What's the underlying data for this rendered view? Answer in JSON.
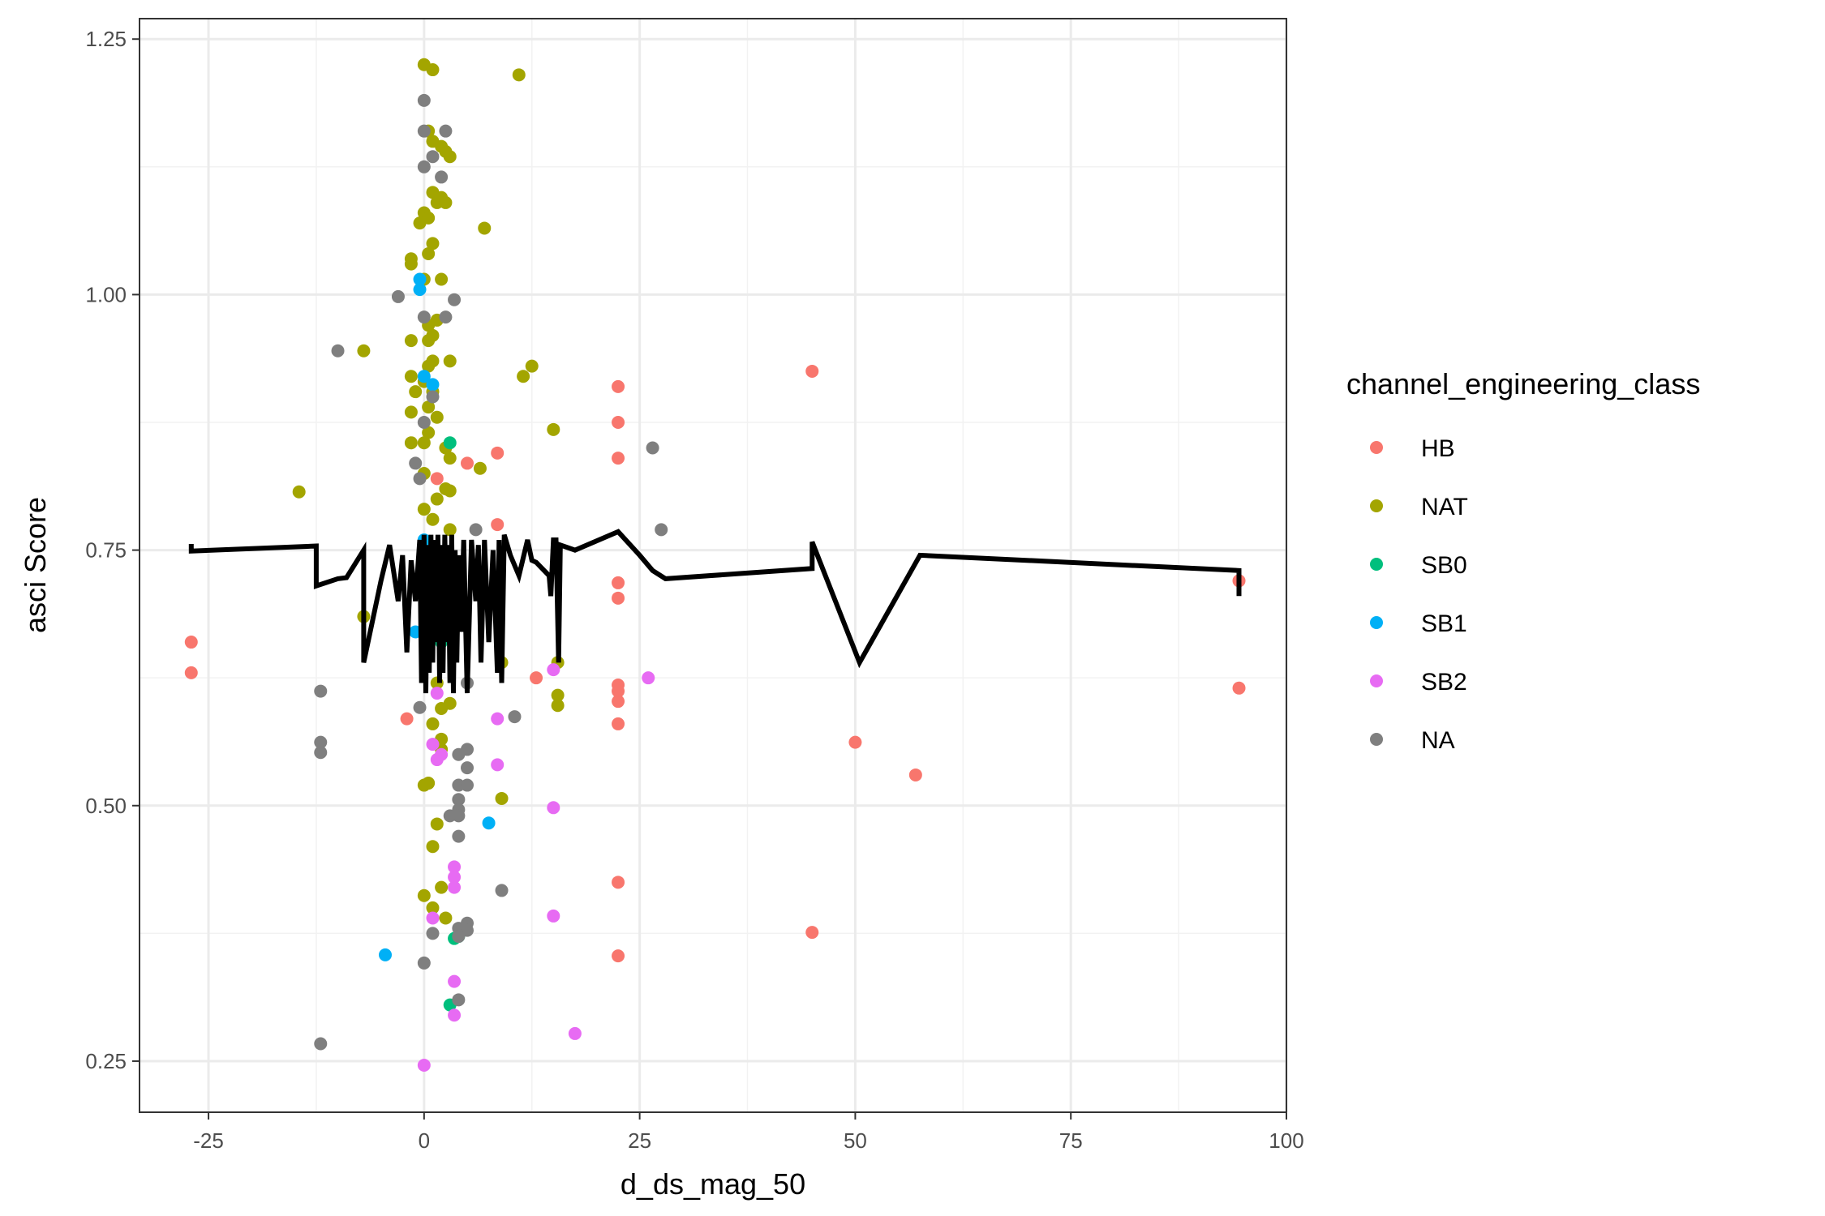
{
  "chart_data": {
    "type": "scatter",
    "title": "",
    "xlabel": "d_ds_mag_50",
    "ylabel": "asci Score",
    "xlim": [
      -33,
      100
    ],
    "ylim": [
      0.2,
      1.27
    ],
    "x_ticks": [
      -25,
      0,
      25,
      50,
      75,
      100
    ],
    "x_tick_labels": [
      "-25",
      "0",
      "25",
      "50",
      "75",
      "100"
    ],
    "y_ticks": [
      0.25,
      0.5,
      0.75,
      1.0,
      1.25
    ],
    "y_tick_labels": [
      "0.25",
      "0.50",
      "0.75",
      "1.00",
      "1.25"
    ],
    "grid": true,
    "legend": {
      "title": "channel_engineering_class",
      "position": "right",
      "entries": [
        {
          "key": "HB",
          "label": "HB",
          "color": "#F8766D"
        },
        {
          "key": "NAT",
          "label": "NAT",
          "color": "#A3A500"
        },
        {
          "key": "SB0",
          "label": "SB0",
          "color": "#00BF7D"
        },
        {
          "key": "SB1",
          "label": "SB1",
          "color": "#00B0F6"
        },
        {
          "key": "SB2",
          "label": "SB2",
          "color": "#E76BF3"
        },
        {
          "key": "NA",
          "label": "NA",
          "color": "#7F7F7F"
        }
      ]
    },
    "series": [
      {
        "key": "HB",
        "points": [
          [
            -27,
            0.66
          ],
          [
            -27,
            0.63
          ],
          [
            -2,
            0.585
          ],
          [
            1.5,
            0.82
          ],
          [
            5,
            0.835
          ],
          [
            8.5,
            0.845
          ],
          [
            8.5,
            0.775
          ],
          [
            13,
            0.625
          ],
          [
            22.5,
            0.91
          ],
          [
            22.5,
            0.875
          ],
          [
            22.5,
            0.84
          ],
          [
            22.5,
            0.718
          ],
          [
            22.5,
            0.703
          ],
          [
            22.5,
            0.618
          ],
          [
            22.5,
            0.612
          ],
          [
            22.5,
            0.602
          ],
          [
            22.5,
            0.58
          ],
          [
            22.5,
            0.425
          ],
          [
            22.5,
            0.353
          ],
          [
            45,
            0.925
          ],
          [
            45,
            0.376
          ],
          [
            50,
            0.562
          ],
          [
            57,
            0.53
          ],
          [
            94.5,
            0.72
          ],
          [
            94.5,
            0.615
          ]
        ]
      },
      {
        "key": "NAT",
        "points": [
          [
            0,
            1.225
          ],
          [
            1,
            1.22
          ],
          [
            11,
            1.215
          ],
          [
            0.5,
            1.16
          ],
          [
            1,
            1.15
          ],
          [
            2,
            1.145
          ],
          [
            2.5,
            1.14
          ],
          [
            3,
            1.135
          ],
          [
            1,
            1.1
          ],
          [
            1.5,
            1.09
          ],
          [
            2,
            1.095
          ],
          [
            2.5,
            1.09
          ],
          [
            0,
            1.08
          ],
          [
            0.5,
            1.075
          ],
          [
            -0.5,
            1.07
          ],
          [
            7,
            1.065
          ],
          [
            1,
            1.05
          ],
          [
            0.5,
            1.04
          ],
          [
            -1.5,
            1.035
          ],
          [
            -1.5,
            1.03
          ],
          [
            0,
            1.015
          ],
          [
            2,
            1.015
          ],
          [
            0.5,
            0.97
          ],
          [
            1.5,
            0.975
          ],
          [
            -1.5,
            0.955
          ],
          [
            1,
            0.96
          ],
          [
            0.5,
            0.955
          ],
          [
            -7,
            0.945
          ],
          [
            1,
            0.935
          ],
          [
            0.5,
            0.93
          ],
          [
            3,
            0.935
          ],
          [
            12.5,
            0.93
          ],
          [
            11.5,
            0.92
          ],
          [
            -1.5,
            0.92
          ],
          [
            0,
            0.915
          ],
          [
            1,
            0.905
          ],
          [
            -1,
            0.905
          ],
          [
            0.5,
            0.89
          ],
          [
            1.5,
            0.88
          ],
          [
            -1.5,
            0.885
          ],
          [
            15,
            0.868
          ],
          [
            0.5,
            0.865
          ],
          [
            0,
            0.855
          ],
          [
            -1.5,
            0.855
          ],
          [
            2.5,
            0.85
          ],
          [
            3,
            0.84
          ],
          [
            6.5,
            0.83
          ],
          [
            0,
            0.825
          ],
          [
            2.5,
            0.81
          ],
          [
            3,
            0.808
          ],
          [
            -14.5,
            0.807
          ],
          [
            1.5,
            0.8
          ],
          [
            0,
            0.79
          ],
          [
            1,
            0.78
          ],
          [
            3,
            0.77
          ],
          [
            -7,
            0.685
          ],
          [
            1.5,
            0.62
          ],
          [
            3,
            0.6
          ],
          [
            15.5,
            0.608
          ],
          [
            15.5,
            0.598
          ],
          [
            2,
            0.595
          ],
          [
            1,
            0.58
          ],
          [
            2,
            0.565
          ],
          [
            2,
            0.555
          ],
          [
            0,
            0.52
          ],
          [
            0.5,
            0.522
          ],
          [
            9,
            0.507
          ],
          [
            1.5,
            0.482
          ],
          [
            1,
            0.46
          ],
          [
            0,
            0.412
          ],
          [
            2,
            0.42
          ],
          [
            1,
            0.4
          ],
          [
            2.5,
            0.39
          ],
          [
            15.5,
            0.64
          ],
          [
            9,
            0.64
          ]
        ]
      },
      {
        "key": "SB0",
        "points": [
          [
            3,
            0.855
          ],
          [
            3.5,
            0.37
          ],
          [
            3,
            0.305
          ],
          [
            4,
            0.372
          ],
          [
            2,
            0.66
          ]
        ]
      },
      {
        "key": "SB1",
        "points": [
          [
            -0.5,
            1.015
          ],
          [
            -0.5,
            1.005
          ],
          [
            0,
            0.92
          ],
          [
            1,
            0.912
          ],
          [
            -1,
            0.67
          ],
          [
            7.5,
            0.483
          ],
          [
            -4.5,
            0.354
          ],
          [
            0,
            0.76
          ]
        ]
      },
      {
        "key": "SB2",
        "points": [
          [
            15,
            0.633
          ],
          [
            26,
            0.625
          ],
          [
            1.5,
            0.61
          ],
          [
            8.5,
            0.585
          ],
          [
            1,
            0.56
          ],
          [
            2,
            0.55
          ],
          [
            1.5,
            0.545
          ],
          [
            8.5,
            0.54
          ],
          [
            15,
            0.498
          ],
          [
            3.5,
            0.44
          ],
          [
            3.5,
            0.43
          ],
          [
            3.5,
            0.42
          ],
          [
            1,
            0.39
          ],
          [
            15,
            0.392
          ],
          [
            3.5,
            0.328
          ],
          [
            3.5,
            0.295
          ],
          [
            17.5,
            0.277
          ],
          [
            0,
            0.246
          ]
        ]
      },
      {
        "key": "NA",
        "points": [
          [
            0,
            1.19
          ],
          [
            0,
            1.16
          ],
          [
            2.5,
            1.16
          ],
          [
            1,
            1.135
          ],
          [
            0,
            1.125
          ],
          [
            2,
            1.115
          ],
          [
            -3,
            0.998
          ],
          [
            3.5,
            0.995
          ],
          [
            0,
            0.978
          ],
          [
            2.5,
            0.978
          ],
          [
            -10,
            0.945
          ],
          [
            1,
            0.9
          ],
          [
            0,
            0.875
          ],
          [
            26.5,
            0.85
          ],
          [
            -1,
            0.835
          ],
          [
            -0.5,
            0.82
          ],
          [
            27.5,
            0.77
          ],
          [
            6,
            0.77
          ],
          [
            -12,
            0.612
          ],
          [
            5,
            0.62
          ],
          [
            10.5,
            0.587
          ],
          [
            -0.5,
            0.596
          ],
          [
            -12,
            0.562
          ],
          [
            -12,
            0.552
          ],
          [
            5,
            0.555
          ],
          [
            4,
            0.55
          ],
          [
            5,
            0.537
          ],
          [
            4,
            0.52
          ],
          [
            5,
            0.52
          ],
          [
            4,
            0.506
          ],
          [
            4,
            0.496
          ],
          [
            4,
            0.49
          ],
          [
            3,
            0.49
          ],
          [
            4,
            0.47
          ],
          [
            9,
            0.417
          ],
          [
            5,
            0.385
          ],
          [
            4,
            0.38
          ],
          [
            5,
            0.378
          ],
          [
            1,
            0.375
          ],
          [
            4,
            0.372
          ],
          [
            0,
            0.346
          ],
          [
            4,
            0.31
          ],
          [
            -12,
            0.267
          ]
        ]
      }
    ],
    "line": {
      "color": "#000000",
      "points": [
        [
          -27,
          0.756
        ],
        [
          -27,
          0.749
        ],
        [
          -12.5,
          0.754
        ],
        [
          -12.5,
          0.715
        ],
        [
          -10,
          0.722
        ],
        [
          -9,
          0.723
        ],
        [
          -7,
          0.75
        ],
        [
          -7,
          0.64
        ],
        [
          -5,
          0.72
        ],
        [
          -4,
          0.755
        ],
        [
          -3,
          0.7
        ],
        [
          -2.5,
          0.745
        ],
        [
          -2,
          0.65
        ],
        [
          -1.5,
          0.74
        ],
        [
          -1,
          0.7
        ],
        [
          -0.5,
          0.76
        ],
        [
          -0.3,
          0.62
        ],
        [
          0,
          0.765
        ],
        [
          0.2,
          0.61
        ],
        [
          0.4,
          0.755
        ],
        [
          0.6,
          0.63
        ],
        [
          0.8,
          0.765
        ],
        [
          1,
          0.64
        ],
        [
          1.2,
          0.76
        ],
        [
          1.4,
          0.66
        ],
        [
          1.6,
          0.765
        ],
        [
          1.8,
          0.62
        ],
        [
          2,
          0.755
        ],
        [
          2.2,
          0.63
        ],
        [
          2.4,
          0.765
        ],
        [
          2.6,
          0.66
        ],
        [
          2.8,
          0.755
        ],
        [
          3,
          0.62
        ],
        [
          3.2,
          0.765
        ],
        [
          3.4,
          0.61
        ],
        [
          3.6,
          0.75
        ],
        [
          3.8,
          0.64
        ],
        [
          4,
          0.745
        ],
        [
          4.3,
          0.67
        ],
        [
          4.6,
          0.76
        ],
        [
          5,
          0.61
        ],
        [
          5.5,
          0.76
        ],
        [
          6,
          0.7
        ],
        [
          6.3,
          0.755
        ],
        [
          6.6,
          0.64
        ],
        [
          7,
          0.76
        ],
        [
          7.5,
          0.66
        ],
        [
          8,
          0.75
        ],
        [
          8.5,
          0.63
        ],
        [
          8.7,
          0.76
        ],
        [
          9,
          0.62
        ],
        [
          9.3,
          0.765
        ],
        [
          10,
          0.745
        ],
        [
          11,
          0.725
        ],
        [
          12,
          0.76
        ],
        [
          12.5,
          0.74
        ],
        [
          13,
          0.738
        ],
        [
          14.5,
          0.725
        ],
        [
          14.7,
          0.705
        ],
        [
          15,
          0.76
        ],
        [
          15.3,
          0.76
        ],
        [
          15.6,
          0.64
        ],
        [
          15.8,
          0.755
        ],
        [
          17.5,
          0.75
        ],
        [
          22.5,
          0.768
        ],
        [
          25,
          0.745
        ],
        [
          26.5,
          0.73
        ],
        [
          28,
          0.722
        ],
        [
          45,
          0.732
        ],
        [
          45,
          0.758
        ],
        [
          50.5,
          0.64
        ],
        [
          57.5,
          0.745
        ],
        [
          94.5,
          0.73
        ],
        [
          94.5,
          0.705
        ]
      ]
    }
  }
}
